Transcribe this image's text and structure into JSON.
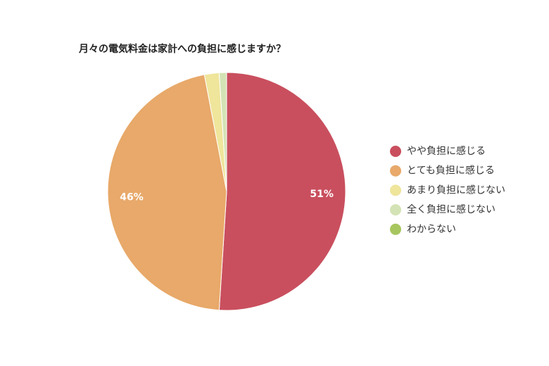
{
  "chart_data": {
    "type": "pie",
    "title": "月々の電気料金は家計への負担に感じますか？",
    "categories": [
      "やや負担に感じる",
      "とても負担に感じる",
      "あまり負担に感じない",
      "全く負担に感じない",
      "わからない"
    ],
    "values": [
      51,
      46,
      2,
      1,
      0
    ],
    "value_labels": [
      "51%",
      "46%",
      null,
      null,
      null
    ],
    "colors": [
      "#c94f5e",
      "#e8a96a",
      "#efe59b",
      "#d4e3b5",
      "#a7c65f"
    ],
    "legend": "right"
  }
}
